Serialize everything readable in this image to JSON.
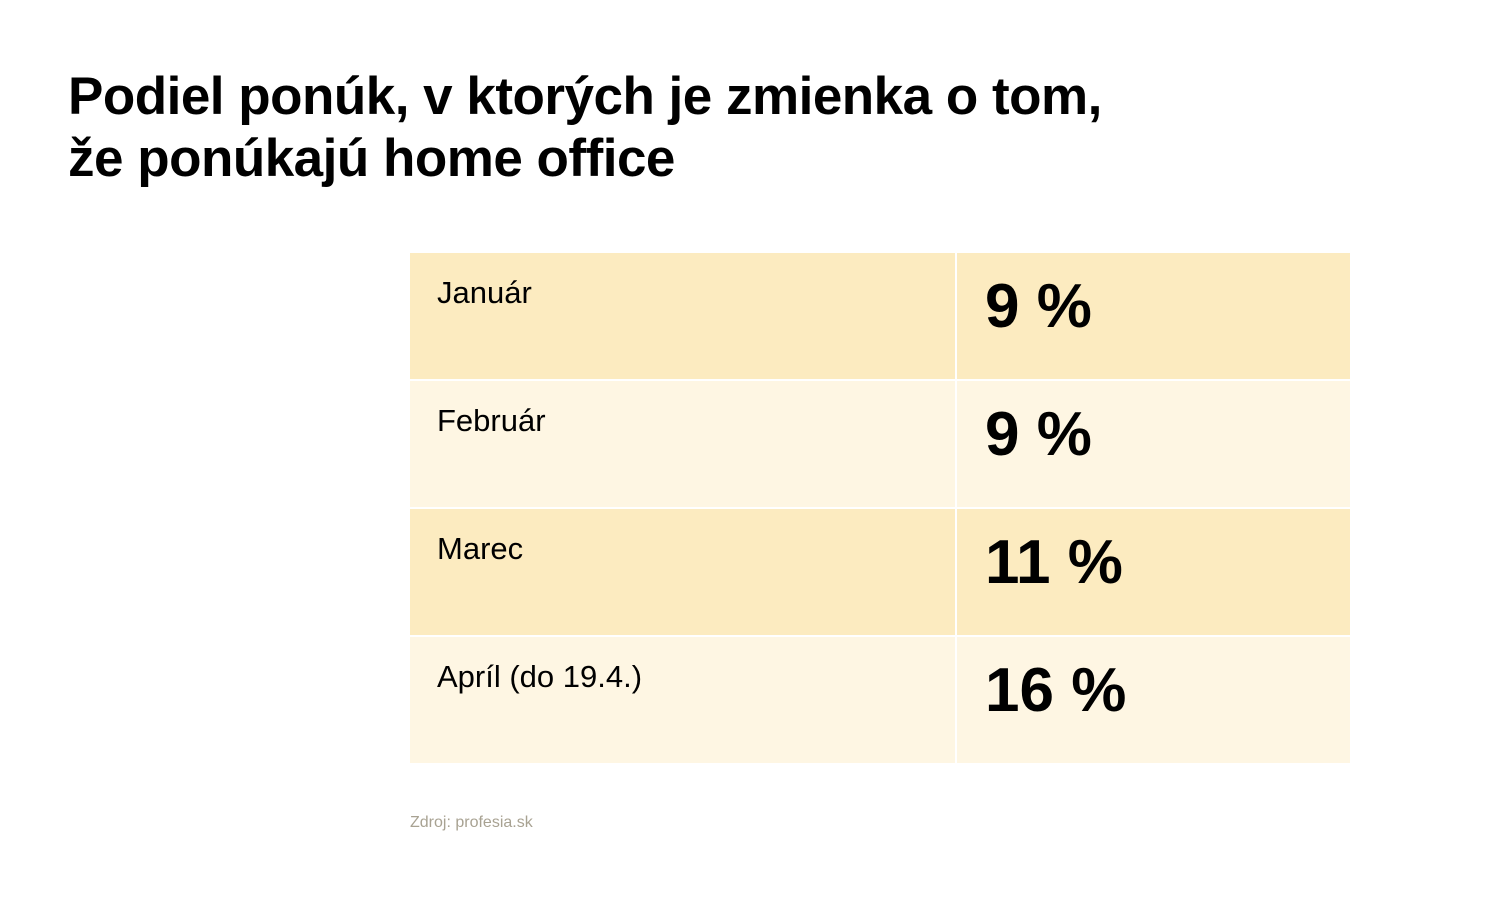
{
  "title_lines": [
    "Podiel ponúk, v ktorých je zmienka o tom,",
    "že ponúkajú home office"
  ],
  "colors": {
    "row_dark": "#fcebc0",
    "row_light": "#fef6e3",
    "source_text": "#a8a292"
  },
  "chart_data": {
    "type": "table",
    "title": "Podiel ponúk, v ktorých je zmienka o tom, že ponúkajú home office",
    "categories": [
      "Január",
      "Február",
      "Marec",
      "Apríl (do 19.4.)"
    ],
    "values": [
      9,
      9,
      11,
      16
    ],
    "value_labels": [
      "9 %",
      "9 %",
      "11 %",
      "16 %"
    ],
    "unit": "%"
  },
  "source": "Zdroj: profesia.sk"
}
